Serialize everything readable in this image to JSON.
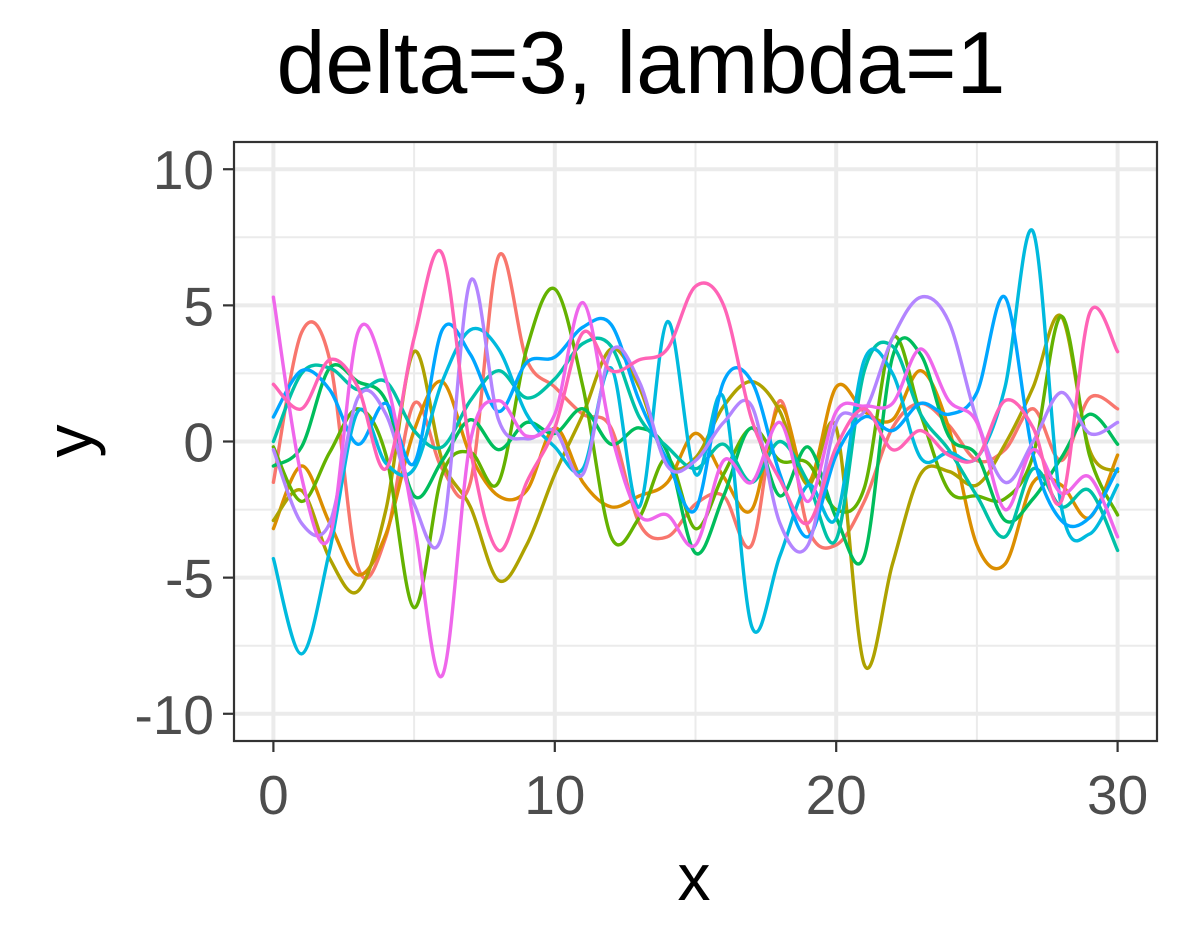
{
  "chart_data": {
    "type": "line",
    "title": "delta=3, lambda=1",
    "xlabel": "x",
    "ylabel": "y",
    "xlim": [
      -1.4,
      31.4
    ],
    "ylim": [
      -11,
      11
    ],
    "x_ticks": [
      0,
      10,
      20,
      30
    ],
    "x_tick_labels": [
      "0",
      "10",
      "20",
      "30"
    ],
    "y_ticks": [
      -10,
      -5,
      0,
      5,
      10
    ],
    "y_tick_labels": [
      "-10",
      "-5",
      "0",
      "5",
      "10"
    ],
    "x_minor_ticks": [
      5,
      15,
      25
    ],
    "y_minor_ticks": [
      -7.5,
      -2.5,
      2.5,
      7.5
    ],
    "grid": true,
    "legend": "none",
    "series": [
      {
        "color": "#F8766D",
        "x": [
          0,
          1,
          2,
          3,
          4,
          5,
          6,
          7,
          8,
          9,
          10,
          11,
          12,
          13,
          14,
          15,
          16,
          17,
          18,
          19,
          20,
          21,
          22,
          23,
          24,
          25,
          26,
          27,
          28,
          29,
          30
        ],
        "y": [
          -1.5,
          4,
          3,
          -4.6,
          -3.5,
          1.4,
          -1,
          -1.5,
          6.8,
          3,
          2,
          1,
          0.5,
          -3,
          -3.5,
          -2.3,
          -2,
          -3.8,
          1.5,
          -3.2,
          -3.8,
          -2.2,
          0.5,
          1.4,
          0.6,
          -0.7,
          -0.3,
          1.2,
          -0.7,
          1.6,
          1.2
        ]
      },
      {
        "color": "#DB8E00",
        "x": [
          0,
          1,
          2,
          3,
          4,
          5,
          6,
          7,
          8,
          9,
          10,
          11,
          12,
          13,
          14,
          15,
          16,
          17,
          18,
          19,
          20,
          21,
          22,
          23,
          24,
          25,
          26,
          27,
          28,
          29,
          30
        ],
        "y": [
          -3.2,
          -0.9,
          -3,
          -4.9,
          -3.4,
          0.4,
          2.2,
          -0.5,
          -2,
          -1.8,
          0.5,
          -1.5,
          -2.4,
          -2,
          -1.5,
          0.3,
          -1.3,
          -2.5,
          1.3,
          -1.5,
          2,
          1.1,
          0.8,
          2.6,
          0.5,
          -3.8,
          -4.5,
          -1.5,
          -1.6,
          -2.8,
          -0.5
        ]
      },
      {
        "color": "#AEA200",
        "x": [
          0,
          1,
          2,
          3,
          4,
          5,
          6,
          7,
          8,
          9,
          10,
          11,
          12,
          13,
          14,
          15,
          16,
          17,
          18,
          19,
          20,
          21,
          22,
          23,
          24,
          25,
          26,
          27,
          28,
          29,
          30
        ],
        "y": [
          -2.9,
          -1.8,
          -4.3,
          -5.5,
          -2.5,
          3.3,
          -0.7,
          -2.4,
          -5.1,
          -3.8,
          -1.2,
          1,
          3.4,
          2,
          -0.8,
          -0.6,
          1.3,
          2.2,
          1.1,
          -1.6,
          0.5,
          -8.2,
          -4.5,
          -1.2,
          -1.1,
          -1.6,
          -0.1,
          2,
          4.6,
          -0.3,
          -1.1
        ]
      },
      {
        "color": "#64B200",
        "x": [
          0,
          1,
          2,
          3,
          4,
          5,
          6,
          7,
          8,
          9,
          10,
          11,
          12,
          13,
          14,
          15,
          16,
          17,
          18,
          19,
          20,
          21,
          22,
          23,
          24,
          25,
          26,
          27,
          28,
          29,
          30
        ],
        "y": [
          -0.2,
          -2.2,
          -0.4,
          1.2,
          -0.5,
          -6.1,
          -1.2,
          -0.4,
          -1.5,
          3.4,
          5.6,
          2,
          -3.5,
          -2.8,
          -0.6,
          -3.2,
          -1.2,
          0.5,
          -0.7,
          -0.8,
          -2.5,
          -1.7,
          3.8,
          1,
          -1.8,
          -2,
          -2.1,
          -0.5,
          4.6,
          -0.5,
          -2.7
        ]
      },
      {
        "color": "#00BD5C",
        "x": [
          0,
          1,
          2,
          3,
          4,
          5,
          6,
          7,
          8,
          9,
          10,
          11,
          12,
          13,
          14,
          15,
          16,
          17,
          18,
          19,
          20,
          21,
          22,
          23,
          24,
          25,
          26,
          27,
          28,
          29,
          30
        ],
        "y": [
          -0.9,
          -0.2,
          2.7,
          2.2,
          1.5,
          -2,
          -0.7,
          0.8,
          -0.3,
          0.7,
          0.3,
          1.2,
          -0.1,
          0.5,
          -0.4,
          -4.1,
          -2,
          0.5,
          -2,
          -0.2,
          -2.8,
          -4.2,
          3.1,
          3.2,
          0.2,
          -0.5,
          -2.9,
          -2.1,
          -0.6,
          1,
          -0.1
        ]
      },
      {
        "color": "#00C1A7",
        "x": [
          0,
          1,
          2,
          3,
          4,
          5,
          6,
          7,
          8,
          9,
          10,
          11,
          12,
          13,
          14,
          15,
          16,
          17,
          18,
          19,
          20,
          21,
          22,
          23,
          24,
          25,
          26,
          27,
          28,
          29,
          30
        ],
        "y": [
          0,
          2.5,
          2.7,
          1.9,
          2.2,
          0.4,
          -0.2,
          1.5,
          2.6,
          1.6,
          2.3,
          3.6,
          3.5,
          0.9,
          -0.2,
          -1,
          -0.1,
          -1.5,
          0,
          -1.5,
          -3.6,
          2.6,
          3.5,
          1,
          -0.3,
          -2,
          -3.5,
          -1,
          -2.4,
          -1.8,
          -4
        ]
      },
      {
        "color": "#00BADE",
        "x": [
          0,
          1,
          2,
          3,
          4,
          5,
          6,
          7,
          8,
          9,
          10,
          11,
          12,
          13,
          14,
          15,
          16,
          17,
          18,
          19,
          20,
          21,
          22,
          23,
          24,
          25,
          26,
          27,
          28,
          29,
          30
        ],
        "y": [
          -4.3,
          -7.8,
          -4,
          1.1,
          -0.8,
          -1,
          2.2,
          4.1,
          3.4,
          1,
          -0.2,
          -1,
          2.7,
          -2.4,
          4.4,
          -1.2,
          1.6,
          -6.8,
          -4.2,
          -1.6,
          -2.8,
          3,
          2.5,
          -0.6,
          -0.4,
          -0.6,
          2,
          7.7,
          -2.4,
          -3.4,
          -1.6
        ]
      },
      {
        "color": "#00A6FF",
        "x": [
          0,
          1,
          2,
          3,
          4,
          5,
          6,
          7,
          8,
          9,
          10,
          11,
          12,
          13,
          14,
          15,
          16,
          17,
          18,
          19,
          20,
          21,
          22,
          23,
          24,
          25,
          26,
          27,
          28,
          29,
          30
        ],
        "y": [
          0.9,
          2.6,
          1.9,
          -0.1,
          1.4,
          -0.8,
          4.1,
          3.2,
          1.1,
          2.9,
          3.1,
          4.2,
          4.3,
          1.5,
          -0.7,
          -2.5,
          2.2,
          2.2,
          -1.2,
          -3.5,
          -0.5,
          0.9,
          0.4,
          1.4,
          1,
          1.8,
          5.3,
          -0.5,
          -2.9,
          -2.8,
          -1
        ]
      },
      {
        "color": "#B385FF",
        "x": [
          0,
          1,
          2,
          3,
          4,
          5,
          6,
          7,
          8,
          9,
          10,
          11,
          12,
          13,
          14,
          15,
          16,
          17,
          18,
          19,
          20,
          21,
          22,
          23,
          24,
          25,
          26,
          27,
          28,
          29,
          30
        ],
        "y": [
          -0.3,
          -3,
          -3,
          1.6,
          1,
          -2.3,
          -3.4,
          5.9,
          0.8,
          0.1,
          0.4,
          -1.2,
          3.3,
          2.2,
          -0.9,
          -0.7,
          0.7,
          1.3,
          -3,
          -3.8,
          0.7,
          1.1,
          3.8,
          5.3,
          4.4,
          0.8,
          -1.5,
          0,
          1.8,
          0.3,
          0.7
        ]
      },
      {
        "color": "#EF67EB",
        "x": [
          0,
          1,
          2,
          3,
          4,
          5,
          6,
          7,
          8,
          9,
          10,
          11,
          12,
          13,
          14,
          15,
          16,
          17,
          18,
          19,
          20,
          21,
          22,
          23,
          24,
          25,
          26,
          27,
          28,
          29,
          30
        ],
        "y": [
          5.3,
          -1.3,
          -3.5,
          4,
          2.3,
          -3,
          -8.6,
          0,
          1.5,
          0.2,
          1,
          5.1,
          0.3,
          -2.7,
          -2.7,
          -3.8,
          -0.7,
          -1.5,
          0.7,
          -2.2,
          1.1,
          1.3,
          1.4,
          3.4,
          1.5,
          0.7,
          -2.5,
          -0.3,
          -1.9,
          -1.3,
          -3.5
        ]
      },
      {
        "color": "#FF63B6",
        "x": [
          0,
          1,
          2,
          3,
          4,
          5,
          6,
          7,
          8,
          9,
          10,
          11,
          12,
          13,
          14,
          15,
          16,
          17,
          18,
          19,
          20,
          21,
          22,
          23,
          24,
          25,
          26,
          27,
          28,
          29,
          30
        ],
        "y": [
          2.1,
          1.2,
          3,
          2,
          -1,
          3.8,
          6.9,
          -0.3,
          -4,
          -1.5,
          0.5,
          4,
          2.6,
          3,
          3.4,
          5.7,
          5,
          0.8,
          -1.4,
          -3,
          -0.2,
          1.2,
          -0.3,
          0.4,
          -0.5,
          -0.6,
          1.5,
          0.5,
          -2.2,
          4.7,
          3.3
        ]
      }
    ]
  }
}
